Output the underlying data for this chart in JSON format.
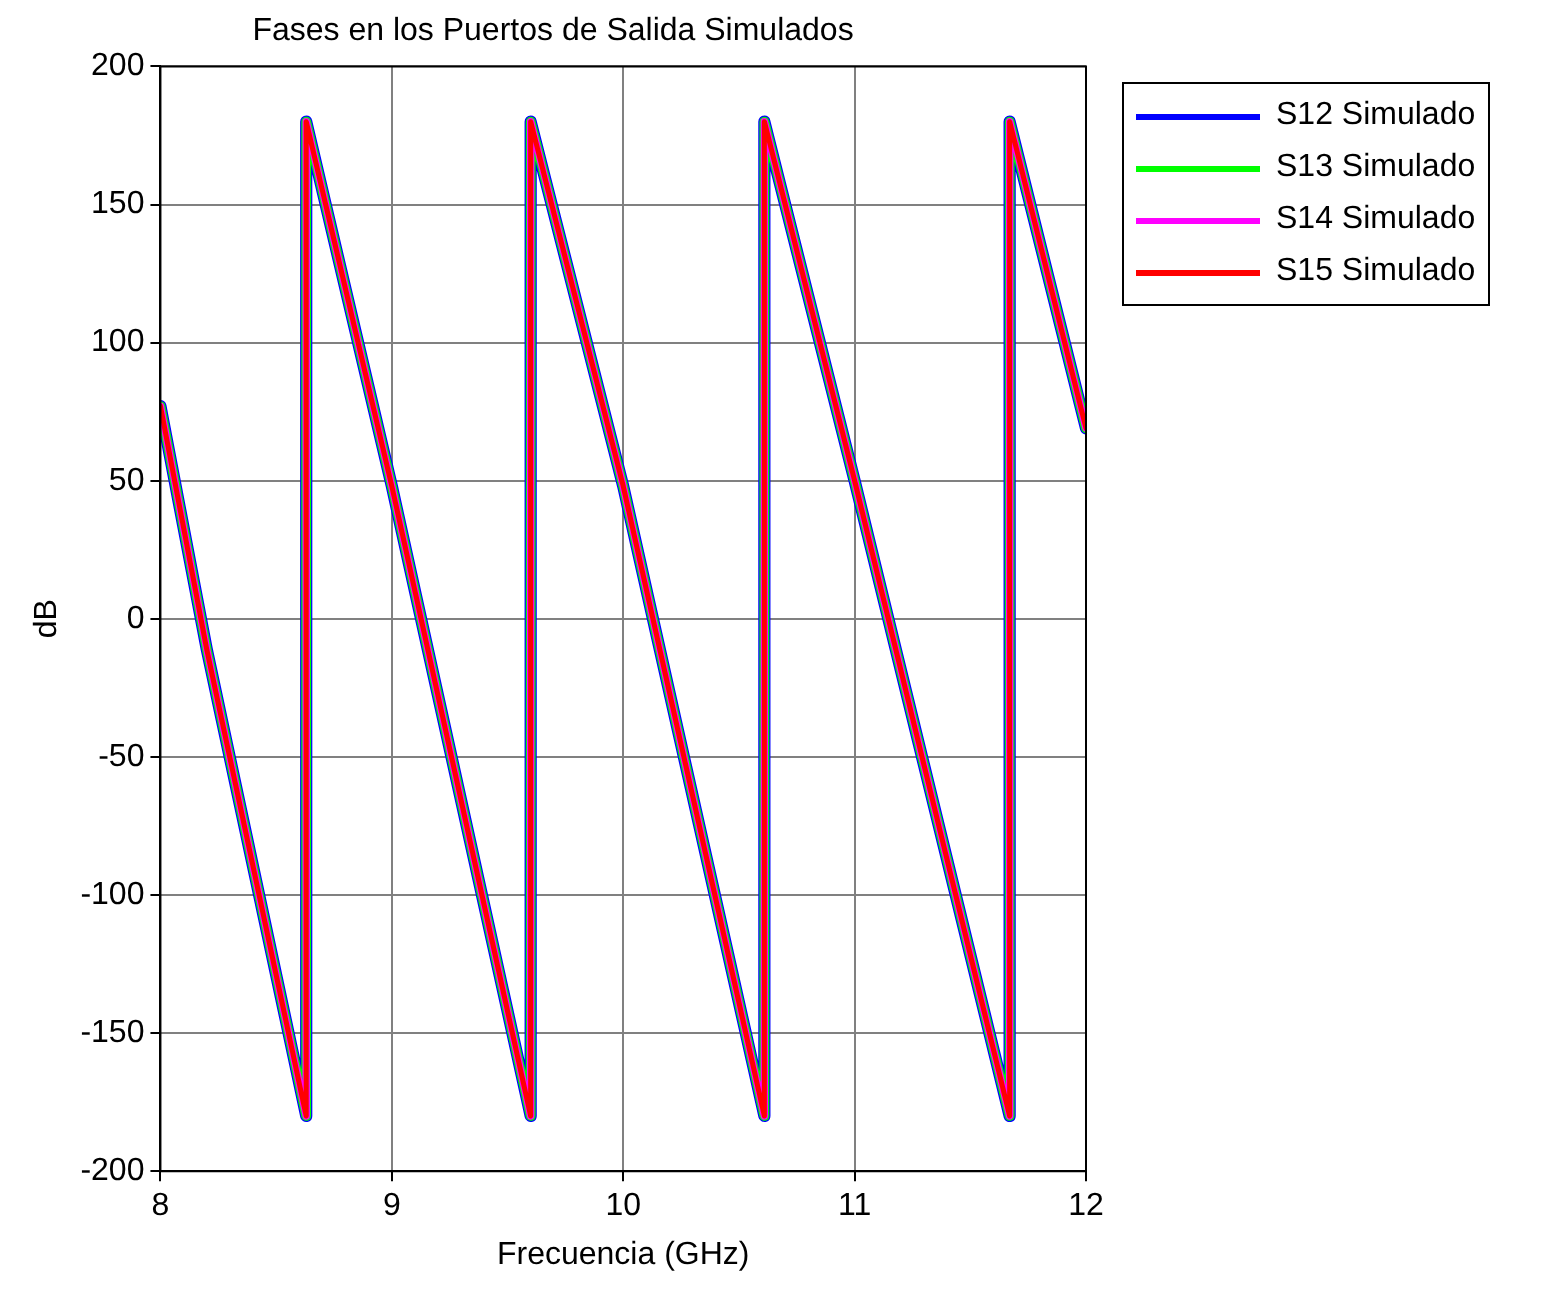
{
  "chart_data": {
    "type": "line",
    "title": "Fases en los Puertos de Salida Simulados",
    "xlabel": "Frecuencia (GHz)",
    "ylabel": "dB",
    "x": [
      8,
      8.2,
      8.63,
      8.63,
      9,
      9.6,
      9.6,
      10,
      10.61,
      10.61,
      11,
      11.67,
      11.67,
      12
    ],
    "series": [
      {
        "name": "S12 Simulado",
        "color": "#0000ff",
        "values": [
          77,
          -11,
          -180,
          180,
          48,
          -180,
          180,
          48,
          -180,
          180,
          50,
          -180,
          180,
          69
        ]
      },
      {
        "name": "S13 Simulado",
        "color": "#00ff00",
        "values": [
          77,
          -11,
          -180,
          180,
          48,
          -180,
          180,
          48,
          -180,
          180,
          50,
          -180,
          180,
          69
        ]
      },
      {
        "name": "S14 Simulado",
        "color": "#ff00ff",
        "values": [
          77,
          -11,
          -180,
          180,
          48,
          -180,
          180,
          48,
          -180,
          180,
          50,
          -180,
          180,
          69
        ]
      },
      {
        "name": "S15 Simulado",
        "color": "#ff0000",
        "values": [
          77,
          -11,
          -180,
          180,
          48,
          -180,
          180,
          48,
          -180,
          180,
          50,
          -180,
          180,
          69
        ]
      }
    ],
    "xlim": [
      8,
      12
    ],
    "xticks": [
      8,
      9,
      10,
      11,
      12
    ],
    "ylim": [
      -200,
      200
    ],
    "yticks": [
      -200,
      -150,
      -100,
      -50,
      0,
      50,
      100,
      150,
      200
    ],
    "grid": true,
    "legend": "top right",
    "marker": "none",
    "line_style": "solid"
  }
}
